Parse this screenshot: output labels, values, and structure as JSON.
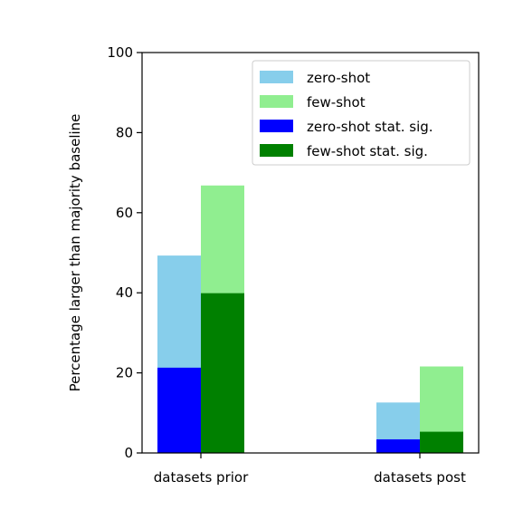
{
  "chart_data": {
    "type": "bar",
    "title": "",
    "xlabel": "",
    "ylabel": "Percentage larger than majority baseline",
    "ylim": [
      0,
      100
    ],
    "yticks": [
      0,
      20,
      40,
      60,
      80,
      100
    ],
    "grid": false,
    "legend_position": "top-right",
    "categories": [
      "datasets prior",
      "datasets post"
    ],
    "series": [
      {
        "name": "zero-shot",
        "color": "#87ceeb",
        "values": [
          49.3,
          12.6
        ]
      },
      {
        "name": "few-shot",
        "color": "#90ee90",
        "values": [
          66.8,
          21.6
        ]
      },
      {
        "name": "zero-shot stat. sig.",
        "color": "#0000ff",
        "values": [
          21.3,
          3.4
        ]
      },
      {
        "name": "few-shot stat. sig.",
        "color": "#008000",
        "values": [
          39.9,
          5.3
        ]
      }
    ]
  }
}
